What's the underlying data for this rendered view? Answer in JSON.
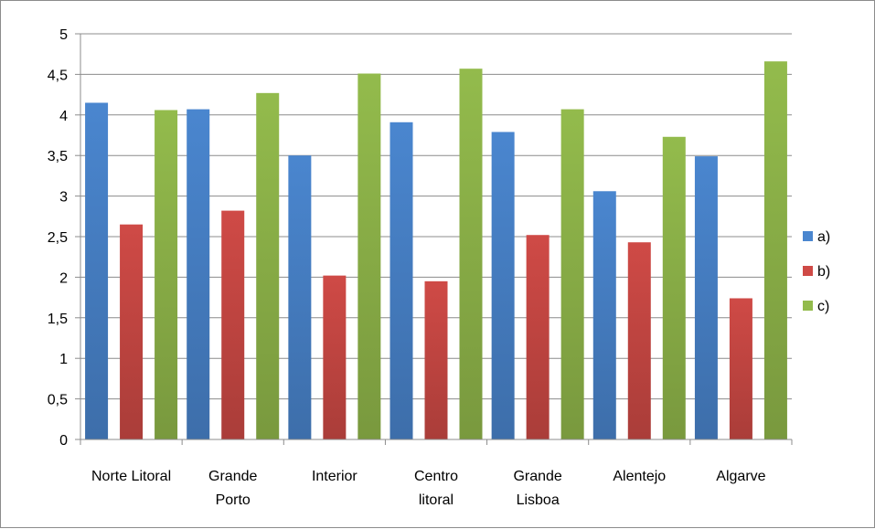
{
  "chart_data": {
    "type": "bar",
    "categories": [
      [
        "Norte Litoral"
      ],
      [
        "Grande",
        "Porto"
      ],
      [
        "Interior"
      ],
      [
        "Centro",
        "litoral"
      ],
      [
        "Grande",
        "Lisboa"
      ],
      [
        "Alentejo"
      ],
      [
        "Algarve"
      ]
    ],
    "series": [
      {
        "name": "a)",
        "color": "#4a86cf",
        "values": [
          4.15,
          4.07,
          3.5,
          3.91,
          3.79,
          3.06,
          3.49
        ]
      },
      {
        "name": "b)",
        "color": "#cf4a46",
        "values": [
          2.65,
          2.82,
          2.02,
          1.95,
          2.52,
          2.43,
          1.74
        ]
      },
      {
        "name": "c)",
        "color": "#93bb4c",
        "values": [
          4.06,
          4.27,
          4.51,
          4.57,
          4.07,
          3.73,
          4.66
        ]
      }
    ],
    "yticks": [
      "0",
      "0,5",
      "1",
      "1,5",
      "2",
      "2,5",
      "3",
      "3,5",
      "4",
      "4,5",
      "5"
    ],
    "ylim": [
      0,
      5
    ],
    "grid": true,
    "legend_position": "right"
  }
}
